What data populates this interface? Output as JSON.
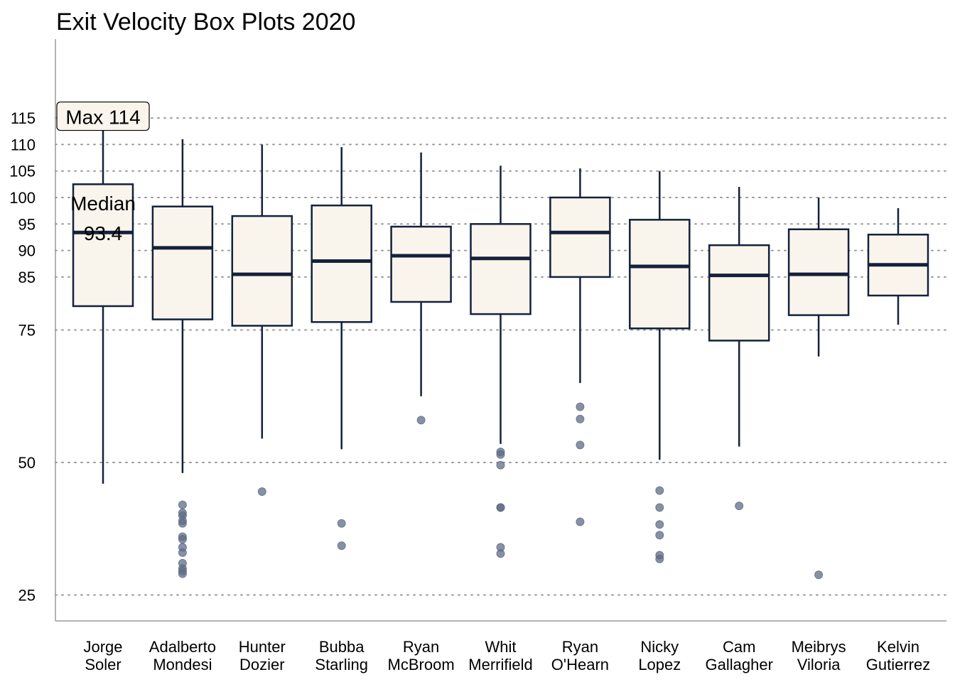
{
  "chart_data": {
    "type": "box",
    "title": "Exit Velocity Box Plots 2020",
    "xlabel": "",
    "ylabel": "",
    "yticks": [
      25,
      50,
      75,
      85,
      90,
      95,
      100,
      105,
      110,
      115
    ],
    "ylim": [
      20,
      130
    ],
    "grid": "horizontal dotted",
    "colors": {
      "box_fill": "#faf5ec",
      "box_stroke": "#14213d",
      "outlier": "#5f6b85",
      "grid": "#9a9a9a"
    },
    "players": [
      {
        "label": [
          "Jorge",
          "Soler"
        ],
        "whisker_low": 46,
        "q1": 79.5,
        "median": 93.4,
        "q3": 102.5,
        "whisker_high": 114,
        "outliers": []
      },
      {
        "label": [
          "Adalberto",
          "Mondesi"
        ],
        "whisker_low": 48,
        "q1": 77.0,
        "median": 90.5,
        "q3": 98.3,
        "whisker_high": 111,
        "outliers": [
          42,
          40.5,
          40,
          39,
          38.5,
          36,
          35.5,
          34,
          33,
          31,
          30,
          29.5,
          29
        ]
      },
      {
        "label": [
          "Hunter",
          "Dozier"
        ],
        "whisker_low": 54.5,
        "q1": 75.8,
        "median": 85.5,
        "q3": 96.5,
        "whisker_high": 110,
        "outliers": [
          44.5
        ]
      },
      {
        "label": [
          "Bubba",
          "Starling"
        ],
        "whisker_low": 52.5,
        "q1": 76.5,
        "median": 88.0,
        "q3": 98.5,
        "whisker_high": 109.5,
        "outliers": [
          38.5,
          34.3
        ]
      },
      {
        "label": [
          "Ryan",
          "McBroom"
        ],
        "whisker_low": 62.5,
        "q1": 80.3,
        "median": 89.0,
        "q3": 94.5,
        "whisker_high": 108.5,
        "outliers": [
          58
        ]
      },
      {
        "label": [
          "Whit",
          "Merrifield"
        ],
        "whisker_low": 53.5,
        "q1": 78.0,
        "median": 88.5,
        "q3": 95.0,
        "whisker_high": 106,
        "outliers": [
          52,
          51.5,
          49.5,
          41.5,
          41.5,
          34,
          32.8
        ]
      },
      {
        "label": [
          "Ryan",
          "O'Hearn"
        ],
        "whisker_low": 65,
        "q1": 85.0,
        "median": 93.4,
        "q3": 100.0,
        "whisker_high": 105.5,
        "outliers": [
          60.5,
          58.2,
          53.3,
          38.8
        ]
      },
      {
        "label": [
          "Nicky",
          "Lopez"
        ],
        "whisker_low": 50.5,
        "q1": 75.3,
        "median": 87.0,
        "q3": 95.8,
        "whisker_high": 105,
        "outliers": [
          44.7,
          41.5,
          38.3,
          36.3,
          32.5,
          31.8
        ]
      },
      {
        "label": [
          "Cam",
          "Gallagher"
        ],
        "whisker_low": 53,
        "q1": 73.0,
        "median": 85.3,
        "q3": 91.0,
        "whisker_high": 102,
        "outliers": [
          41.8
        ]
      },
      {
        "label": [
          "Meibrys",
          "Viloria"
        ],
        "whisker_low": 70,
        "q1": 77.8,
        "median": 85.5,
        "q3": 94.0,
        "whisker_high": 100,
        "outliers": [
          28.8
        ]
      },
      {
        "label": [
          "Kelvin",
          "Gutierrez"
        ],
        "whisker_low": 76,
        "q1": 81.5,
        "median": 87.3,
        "q3": 93.0,
        "whisker_high": 98,
        "outliers": []
      }
    ],
    "annotations": {
      "max": {
        "text": "Max 114",
        "value": 114,
        "player_index": 0
      },
      "median": {
        "lines": [
          "Median",
          "93.4"
        ],
        "value": 93.4,
        "player_index": 0
      }
    }
  }
}
